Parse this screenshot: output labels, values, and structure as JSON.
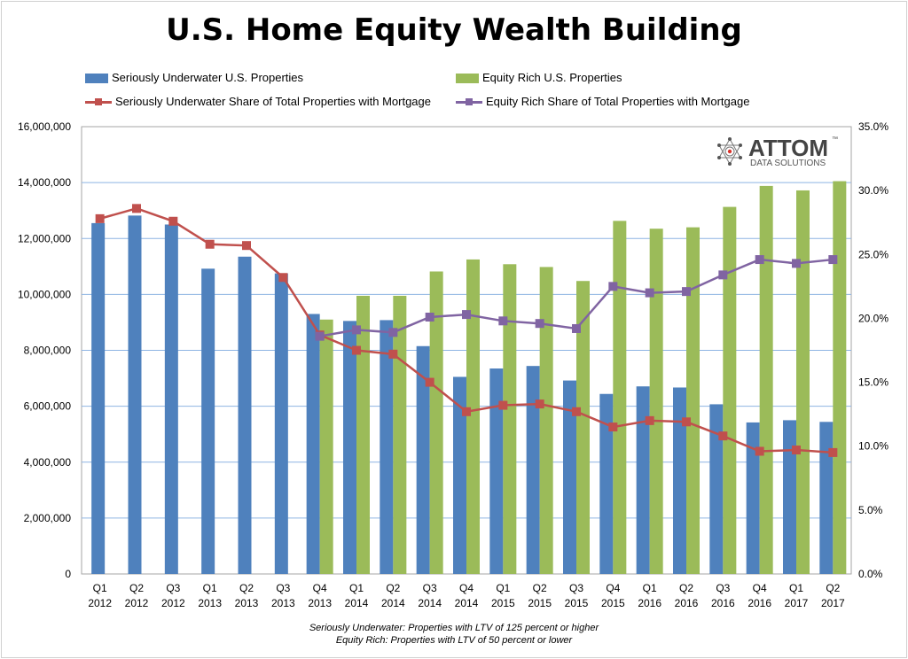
{
  "chart_data": {
    "type": "bar",
    "title": "U.S. Home Equity Wealth Building",
    "categories": [
      [
        "Q1",
        "2012"
      ],
      [
        "Q2",
        "2012"
      ],
      [
        "Q3",
        "2012"
      ],
      [
        "Q1",
        "2013"
      ],
      [
        "Q2",
        "2013"
      ],
      [
        "Q3",
        "2013"
      ],
      [
        "Q4",
        "2013"
      ],
      [
        "Q1",
        "2014"
      ],
      [
        "Q2",
        "2014"
      ],
      [
        "Q3",
        "2014"
      ],
      [
        "Q4",
        "2014"
      ],
      [
        "Q1",
        "2015"
      ],
      [
        "Q2",
        "2015"
      ],
      [
        "Q3",
        "2015"
      ],
      [
        "Q4",
        "2015"
      ],
      [
        "Q1",
        "2016"
      ],
      [
        "Q2",
        "2016"
      ],
      [
        "Q3",
        "2016"
      ],
      [
        "Q4",
        "2016"
      ],
      [
        "Q1",
        "2017"
      ],
      [
        "Q2",
        "2017"
      ]
    ],
    "series": [
      {
        "name": "Seriously Underwater U.S. Properties",
        "kind": "bar",
        "axis": "left",
        "color": "#4f81bd",
        "values": [
          12550000,
          12820000,
          12500000,
          10920000,
          11350000,
          10750000,
          9300000,
          9050000,
          9080000,
          8150000,
          7050000,
          7350000,
          7440000,
          6920000,
          6440000,
          6710000,
          6670000,
          6070000,
          5420000,
          5500000,
          5440000
        ]
      },
      {
        "name": "Equity Rich U.S. Properties",
        "kind": "bar",
        "axis": "left",
        "color": "#9bbb59",
        "values": [
          null,
          null,
          null,
          null,
          null,
          null,
          9100000,
          9950000,
          9950000,
          10820000,
          11250000,
          11080000,
          10980000,
          10480000,
          12630000,
          12350000,
          12400000,
          13130000,
          13880000,
          13720000,
          14050000
        ]
      },
      {
        "name": "Seriously Underwater Share of Total Properties with Mortgage",
        "kind": "line",
        "axis": "right",
        "color": "#c0504d",
        "values": [
          27.8,
          28.6,
          27.6,
          25.8,
          25.7,
          23.2,
          18.7,
          17.5,
          17.2,
          15.0,
          12.7,
          13.2,
          13.3,
          12.7,
          11.5,
          12.0,
          11.9,
          10.8,
          9.6,
          9.7,
          9.5
        ]
      },
      {
        "name": "Equity Rich Share of Total Properties with Mortgage",
        "kind": "line",
        "axis": "right",
        "color": "#8064a2",
        "values": [
          null,
          null,
          null,
          null,
          null,
          null,
          18.6,
          19.1,
          18.9,
          20.1,
          20.3,
          19.8,
          19.6,
          19.2,
          22.5,
          22.0,
          22.1,
          23.4,
          24.6,
          24.3,
          24.6
        ]
      }
    ],
    "ylim_left": [
      0,
      16000000
    ],
    "ylim_right": [
      0,
      35
    ],
    "yticks_left": [
      "0",
      "2,000,000",
      "4,000,000",
      "6,000,000",
      "8,000,000",
      "10,000,000",
      "12,000,000",
      "14,000,000",
      "16,000,000"
    ],
    "yticks_right": [
      "0.0%",
      "5.0%",
      "10.0%",
      "15.0%",
      "20.0%",
      "25.0%",
      "30.0%",
      "35.0%"
    ],
    "grid": "horizontal",
    "legend_position": "top"
  },
  "legend": {
    "item1": "Seriously Underwater U.S. Properties",
    "item2": "Equity Rich U.S. Properties",
    "item3": "Seriously Underwater Share of Total Properties with Mortgage",
    "item4": "Equity Rich Share of Total Properties with Mortgage"
  },
  "logo": {
    "name": "ATTOM",
    "tagline": "DATA SOLUTIONS",
    "tm": "™"
  },
  "footnotes": {
    "line1": "Seriously Underwater: Properties with LTV of 125 percent or higher",
    "line2": "Equity Rich: Properties with LTV of 50 percent or lower"
  }
}
